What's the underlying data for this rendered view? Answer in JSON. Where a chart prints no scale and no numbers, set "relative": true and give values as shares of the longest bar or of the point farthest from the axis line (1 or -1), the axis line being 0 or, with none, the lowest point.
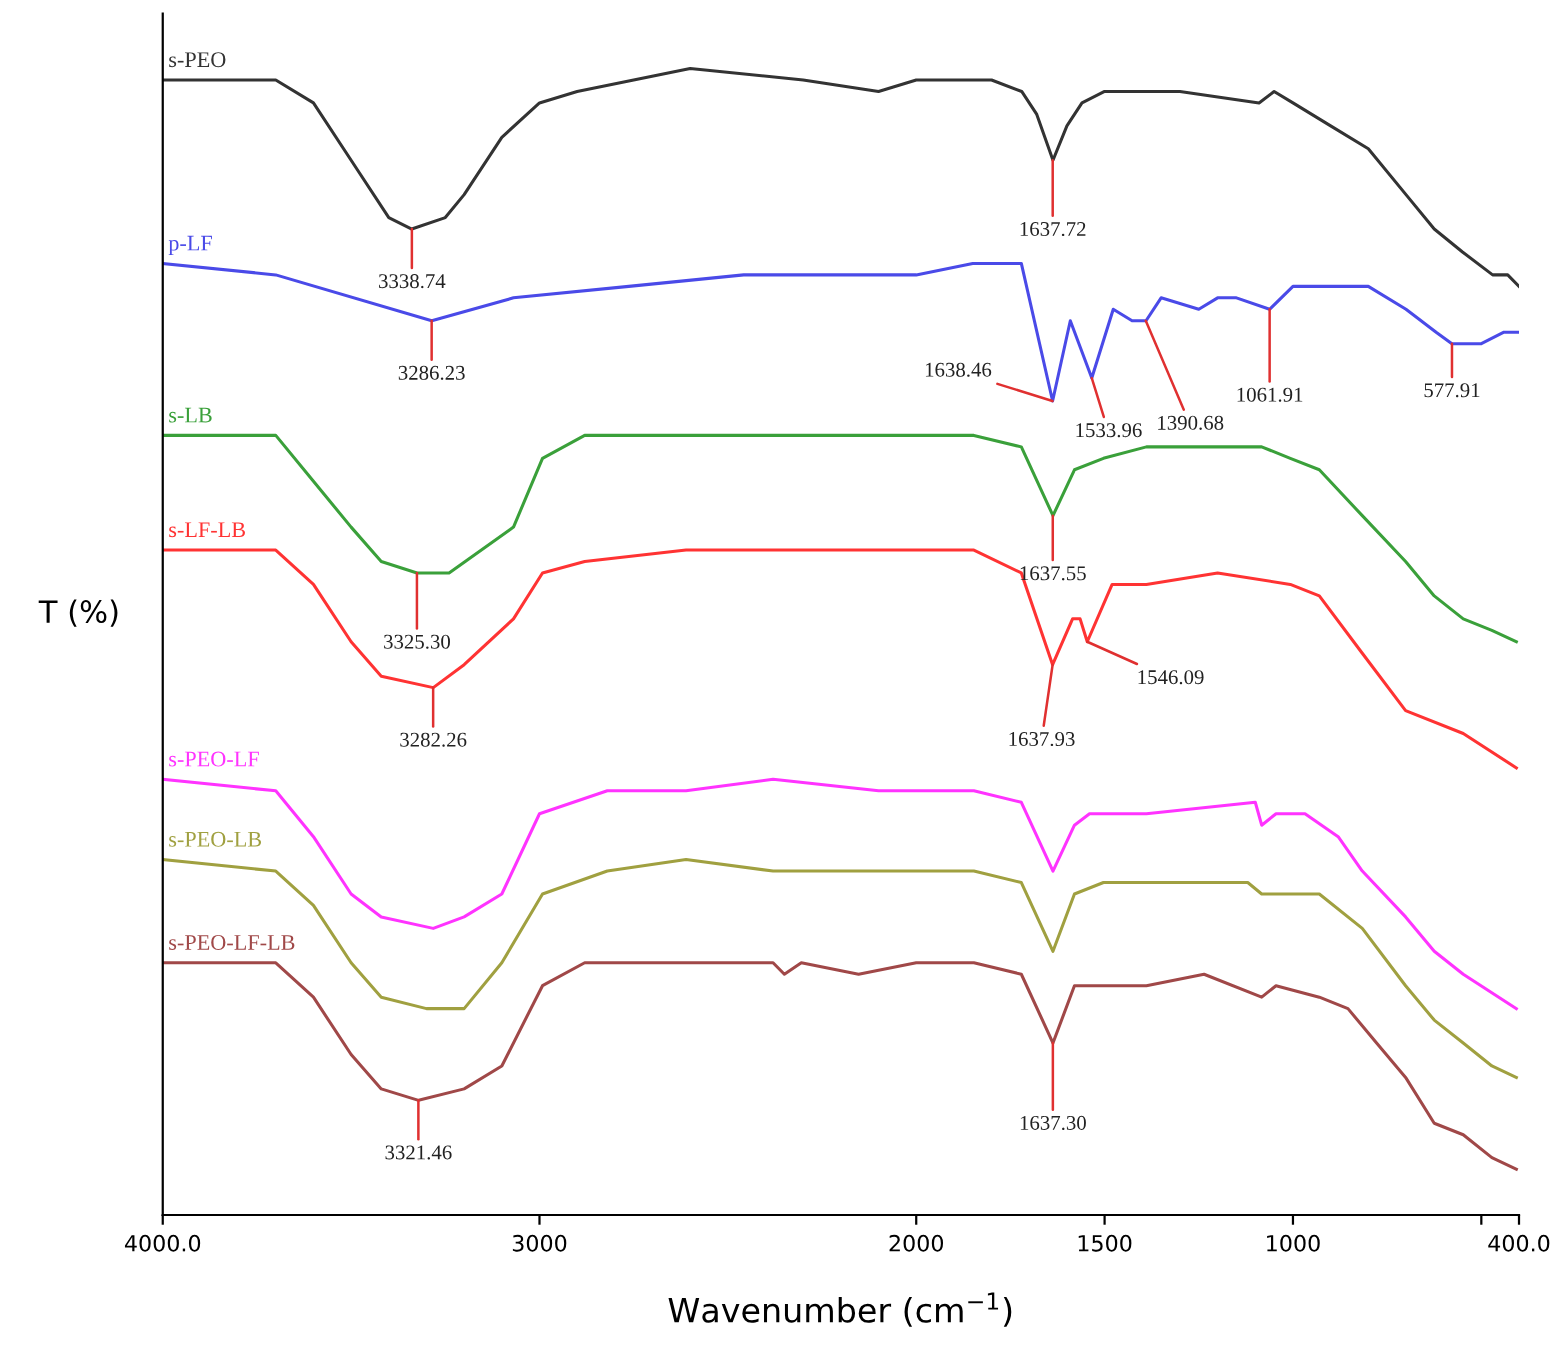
{
  "chart_data": {
    "type": "line",
    "relative": true,
    "xlabel": "Wavenumber (cm$^{−1}$)",
    "ylabel": "T (%)",
    "xlim": [
      4000,
      400
    ],
    "xticks": [
      {
        "value": 4000,
        "label": "4000.0"
      },
      3000,
      2000,
      1500,
      1000,
      {
        "value": 500,
        "label": null
      },
      {
        "value": 400,
        "label": "400.0"
      }
    ],
    "grid": false,
    "legend": false,
    "marker": "none",
    "line_style": "solid",
    "series": [
      {
        "name": "s-PEO",
        "color": "#333333",
        "x": [
          4000,
          3700,
          3600,
          3500,
          3400,
          3339,
          3250,
          3200,
          3100,
          3000,
          2900,
          2600,
          2300,
          2100,
          2000,
          1800,
          1720,
          1680,
          1637,
          1600,
          1560,
          1500,
          1300,
          1090,
          1050,
          1000,
          900,
          800,
          700,
          625,
          550,
          470,
          430,
          400
        ],
        "values": [
          0.99,
          0.99,
          0.97,
          0.92,
          0.87,
          0.86,
          0.87,
          0.89,
          0.94,
          0.97,
          0.98,
          1.0,
          0.99,
          0.98,
          0.99,
          0.99,
          0.98,
          0.96,
          0.92,
          0.95,
          0.97,
          0.98,
          0.98,
          0.97,
          0.98,
          0.97,
          0.95,
          0.93,
          0.89,
          0.86,
          0.84,
          0.82,
          0.82,
          0.81
        ]
      },
      {
        "name": "p-LF",
        "color": "#4a4ae8",
        "x": [
          4000,
          3700,
          3286,
          3069,
          2763,
          2458,
          2000,
          1850,
          1721,
          1638,
          1591,
          1534,
          1477,
          1427,
          1390,
          1350,
          1250,
          1200,
          1150,
          1062,
          1000,
          900,
          800,
          700,
          620,
          578,
          500,
          440,
          400
        ],
        "values": [
          0.83,
          0.82,
          0.78,
          0.8,
          0.81,
          0.82,
          0.82,
          0.83,
          0.83,
          0.71,
          0.78,
          0.73,
          0.79,
          0.78,
          0.78,
          0.8,
          0.79,
          0.8,
          0.8,
          0.79,
          0.81,
          0.81,
          0.81,
          0.79,
          0.77,
          0.76,
          0.76,
          0.77,
          0.77
        ]
      },
      {
        "name": "s-LB",
        "color": "#3aa03a",
        "x": [
          4000,
          3700,
          3600,
          3500,
          3420,
          3325,
          3240,
          3069,
          2992,
          2880,
          2763,
          2305,
          2100,
          2000,
          1847,
          1721,
          1637,
          1580,
          1503,
          1389,
          1083,
          1007,
          930,
          816,
          701,
          625,
          548,
          472,
          407
        ],
        "values": [
          0.68,
          0.68,
          0.64,
          0.6,
          0.57,
          0.56,
          0.56,
          0.6,
          0.66,
          0.68,
          0.68,
          0.68,
          0.68,
          0.68,
          0.68,
          0.67,
          0.61,
          0.65,
          0.66,
          0.67,
          0.67,
          0.66,
          0.65,
          0.61,
          0.57,
          0.54,
          0.52,
          0.51,
          0.5
        ]
      },
      {
        "name": "s-LF-LB",
        "color": "#ff3333",
        "x": [
          4000,
          3700,
          3600,
          3500,
          3420,
          3282,
          3200,
          3069,
          2992,
          2880,
          2611,
          2000,
          1847,
          1721,
          1638,
          1585,
          1565,
          1546,
          1480,
          1427,
          1389,
          1200,
          1007,
          930,
          816,
          701,
          548,
          407
        ],
        "values": [
          0.58,
          0.58,
          0.55,
          0.5,
          0.47,
          0.46,
          0.48,
          0.52,
          0.56,
          0.57,
          0.58,
          0.58,
          0.58,
          0.56,
          0.48,
          0.52,
          0.52,
          0.5,
          0.55,
          0.55,
          0.55,
          0.56,
          0.55,
          0.54,
          0.49,
          0.44,
          0.42,
          0.39
        ]
      },
      {
        "name": "s-PEO-LF",
        "color": "#ff33ff",
        "x": [
          4000,
          3700,
          3600,
          3500,
          3420,
          3282,
          3200,
          3100,
          3000,
          2820,
          2611,
          2380,
          2100,
          2000,
          1847,
          1721,
          1637,
          1580,
          1540,
          1389,
          1100,
          1083,
          1045,
          968,
          880,
          816,
          701,
          625,
          548,
          407
        ],
        "values": [
          0.38,
          0.37,
          0.33,
          0.28,
          0.26,
          0.25,
          0.26,
          0.28,
          0.35,
          0.37,
          0.37,
          0.38,
          0.37,
          0.37,
          0.37,
          0.36,
          0.3,
          0.34,
          0.35,
          0.35,
          0.36,
          0.34,
          0.35,
          0.35,
          0.33,
          0.3,
          0.26,
          0.23,
          0.21,
          0.18
        ]
      },
      {
        "name": "s-PEO-LB",
        "color": "#a0a040",
        "x": [
          4000,
          3700,
          3600,
          3500,
          3420,
          3300,
          3200,
          3100,
          2992,
          2820,
          2611,
          2380,
          2305,
          2100,
          2000,
          1847,
          1721,
          1637,
          1580,
          1503,
          1389,
          1120,
          1083,
          1045,
          930,
          816,
          701,
          625,
          548,
          472,
          407
        ],
        "values": [
          0.31,
          0.3,
          0.27,
          0.22,
          0.19,
          0.18,
          0.18,
          0.22,
          0.28,
          0.3,
          0.31,
          0.3,
          0.3,
          0.3,
          0.3,
          0.3,
          0.29,
          0.23,
          0.28,
          0.29,
          0.29,
          0.29,
          0.28,
          0.28,
          0.28,
          0.25,
          0.2,
          0.17,
          0.15,
          0.13,
          0.12
        ]
      },
      {
        "name": "s-PEO-LF-LB",
        "color": "#a04848",
        "x": [
          4000,
          3700,
          3600,
          3500,
          3420,
          3321,
          3200,
          3100,
          2992,
          2880,
          2687,
          2380,
          2350,
          2305,
          2153,
          2000,
          1847,
          1721,
          1637,
          1580,
          1503,
          1389,
          1236,
          1083,
          1045,
          930,
          854,
          778,
          701,
          625,
          548,
          472,
          407
        ],
        "values": [
          0.22,
          0.22,
          0.19,
          0.14,
          0.11,
          0.1,
          0.11,
          0.13,
          0.2,
          0.22,
          0.22,
          0.22,
          0.21,
          0.22,
          0.21,
          0.22,
          0.22,
          0.21,
          0.15,
          0.2,
          0.2,
          0.2,
          0.21,
          0.19,
          0.2,
          0.19,
          0.18,
          0.15,
          0.12,
          0.08,
          0.07,
          0.05,
          0.04
        ]
      }
    ],
    "annotations": [
      {
        "text": "3338.74",
        "x": 3338.74,
        "y": 0.86
      },
      {
        "text": "1637.72",
        "x": 1637.72,
        "y": 0.92
      },
      {
        "text": "3286.23",
        "x": 3286.23,
        "y": 0.78
      },
      {
        "text": "1638.46",
        "x": 1638.46,
        "y": 0.71
      },
      {
        "text": "1533.96",
        "x": 1533.96,
        "y": 0.73
      },
      {
        "text": "1390.68",
        "x": 1390.68,
        "y": 0.78
      },
      {
        "text": "1061.91",
        "x": 1061.91,
        "y": 0.79
      },
      {
        "text": "577.91",
        "x": 577.91,
        "y": 0.76
      },
      {
        "text": "3325.30",
        "x": 3325.3,
        "y": 0.56
      },
      {
        "text": "1637.55",
        "x": 1637.55,
        "y": 0.61
      },
      {
        "text": "3282.26",
        "x": 3282.26,
        "y": 0.46
      },
      {
        "text": "1637.93",
        "x": 1637.93,
        "y": 0.48
      },
      {
        "text": "1546.09",
        "x": 1546.09,
        "y": 0.5
      },
      {
        "text": "3321.46",
        "x": 3321.46,
        "y": 0.1
      },
      {
        "text": "1637.30",
        "x": 1637.3,
        "y": 0.15
      }
    ]
  }
}
